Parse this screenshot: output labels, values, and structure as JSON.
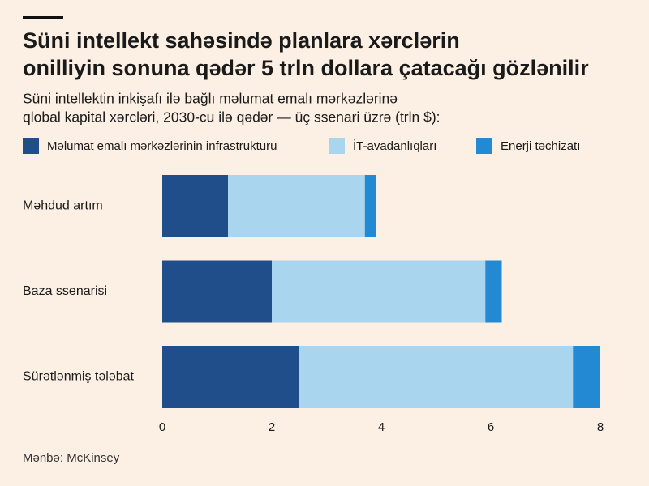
{
  "chart_data": {
    "type": "stacked-barh",
    "title": [
      "Süni intellekt sahəsində planlara xərclərin",
      "onilliyin sonuna qədər 5 trln dollara çatacağı gözlənilir"
    ],
    "subtitle": [
      "Süni intellektin inkişafı ilə bağlı məlumat emalı mərkəzlərinə",
      "qlobal kapital xərcləri, 2030-cu ilə qədər — üç ssenari üzrə (trln $):"
    ],
    "categories": [
      "Məhdud artım",
      "Baza ssenarisi",
      "Sürətlənmiş tələbat"
    ],
    "series": [
      {
        "name": "Məlumat emalı mərkəzlərinin infrastrukturu",
        "color": "#1f4e8a",
        "values": [
          1.2,
          2.0,
          2.5
        ]
      },
      {
        "name": "İT-avadanlıqları",
        "color": "#a9d6ee",
        "values": [
          2.5,
          3.9,
          5.0
        ]
      },
      {
        "name": "Enerji təchizatı",
        "color": "#2389d2",
        "values": [
          0.2,
          0.3,
          0.5
        ]
      }
    ],
    "xlim": [
      0,
      8
    ],
    "xticks": [
      0,
      2,
      4,
      6,
      8
    ],
    "source": "Mənbə: McKinsey"
  }
}
